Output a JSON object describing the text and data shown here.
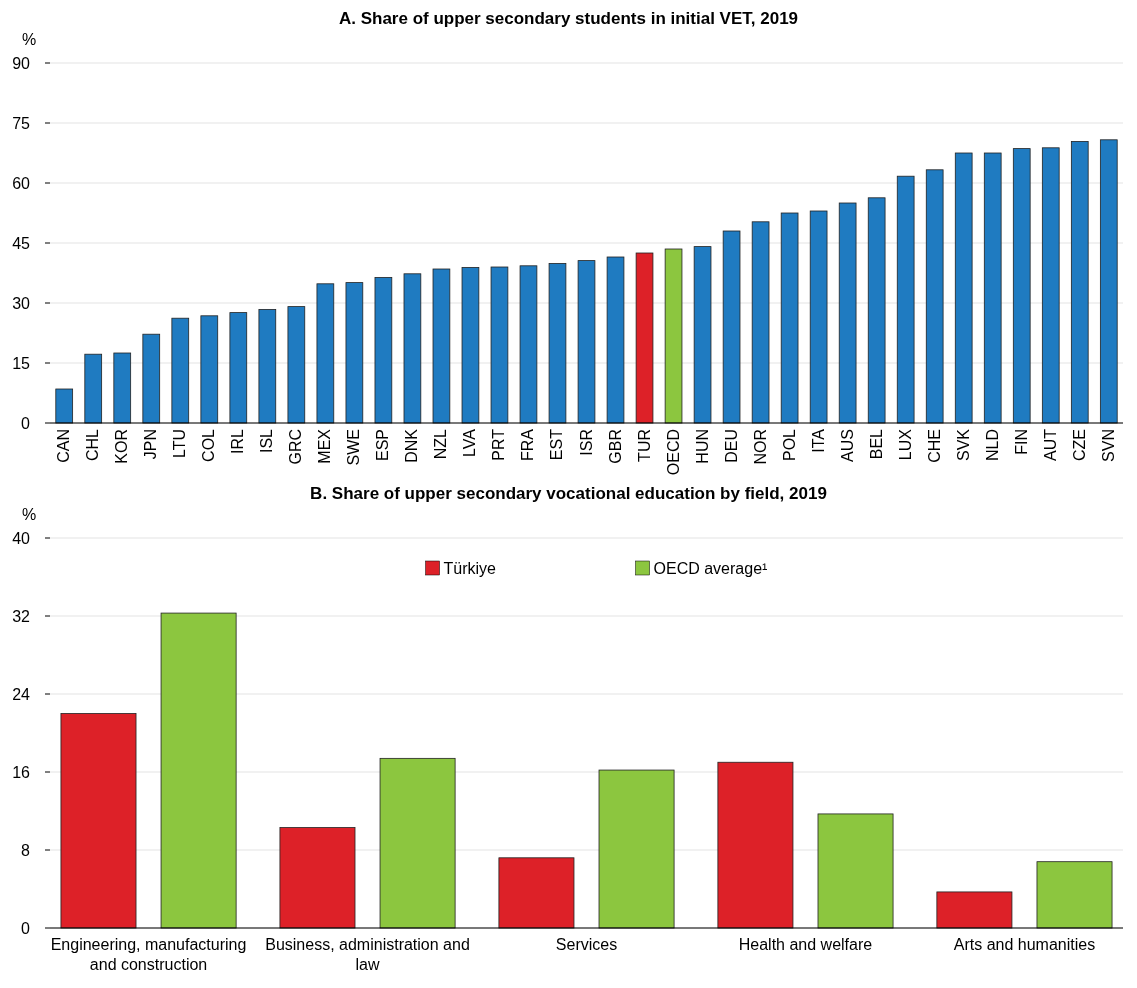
{
  "chart_data": [
    {
      "type": "bar",
      "title": "A. Share of upper secondary students in initial VET, 2019",
      "ylabel": "%",
      "categories": [
        "CAN",
        "CHL",
        "KOR",
        "JPN",
        "LTU",
        "COL",
        "IRL",
        "ISL",
        "GRC",
        "MEX",
        "SWE",
        "ESP",
        "DNK",
        "NZL",
        "LVA",
        "PRT",
        "FRA",
        "EST",
        "ISR",
        "GBR",
        "TUR",
        "OECD",
        "HUN",
        "DEU",
        "NOR",
        "POL",
        "ITA",
        "AUS",
        "BEL",
        "LUX",
        "CHE",
        "SVK",
        "NLD",
        "FIN",
        "AUT",
        "CZE",
        "SVN"
      ],
      "values": [
        8.5,
        17.2,
        17.5,
        22.2,
        26.2,
        26.8,
        27.6,
        28.4,
        29.1,
        34.8,
        35.1,
        36.4,
        37.3,
        38.5,
        38.9,
        39.0,
        39.3,
        39.9,
        40.6,
        41.5,
        42.5,
        43.5,
        44.1,
        48.0,
        50.3,
        52.5,
        53.0,
        55.0,
        56.3,
        61.7,
        63.3,
        67.5,
        67.5,
        68.6,
        68.8,
        70.4,
        70.8
      ],
      "colors": [
        "#1f7bc1",
        "#1f7bc1",
        "#1f7bc1",
        "#1f7bc1",
        "#1f7bc1",
        "#1f7bc1",
        "#1f7bc1",
        "#1f7bc1",
        "#1f7bc1",
        "#1f7bc1",
        "#1f7bc1",
        "#1f7bc1",
        "#1f7bc1",
        "#1f7bc1",
        "#1f7bc1",
        "#1f7bc1",
        "#1f7bc1",
        "#1f7bc1",
        "#1f7bc1",
        "#1f7bc1",
        "#dd2128",
        "#8cc63f",
        "#1f7bc1",
        "#1f7bc1",
        "#1f7bc1",
        "#1f7bc1",
        "#1f7bc1",
        "#1f7bc1",
        "#1f7bc1",
        "#1f7bc1",
        "#1f7bc1",
        "#1f7bc1",
        "#1f7bc1",
        "#1f7bc1",
        "#1f7bc1",
        "#1f7bc1",
        "#1f7bc1"
      ],
      "ylim": [
        0,
        90
      ],
      "yticks": [
        0,
        15,
        30,
        45,
        60,
        75,
        90
      ],
      "grid": true,
      "legend": false
    },
    {
      "type": "bar",
      "title": "B. Share of upper secondary vocational education by field, 2019",
      "ylabel": "%",
      "categories": [
        "Engineering, manufacturing and construction",
        "Business, administration and law",
        "Services",
        "Health and welfare",
        "Arts and humanities"
      ],
      "series": [
        {
          "name": "Türkiye",
          "color": "#dd2128",
          "values": [
            22.0,
            10.3,
            7.2,
            17.0,
            3.7
          ]
        },
        {
          "name": "OECD average¹",
          "color": "#8cc63f",
          "values": [
            32.3,
            17.4,
            16.2,
            11.7,
            6.8
          ]
        }
      ],
      "ylim": [
        0,
        40
      ],
      "yticks": [
        0,
        8,
        16,
        24,
        32,
        40
      ],
      "grid": true,
      "legend": "top"
    }
  ]
}
